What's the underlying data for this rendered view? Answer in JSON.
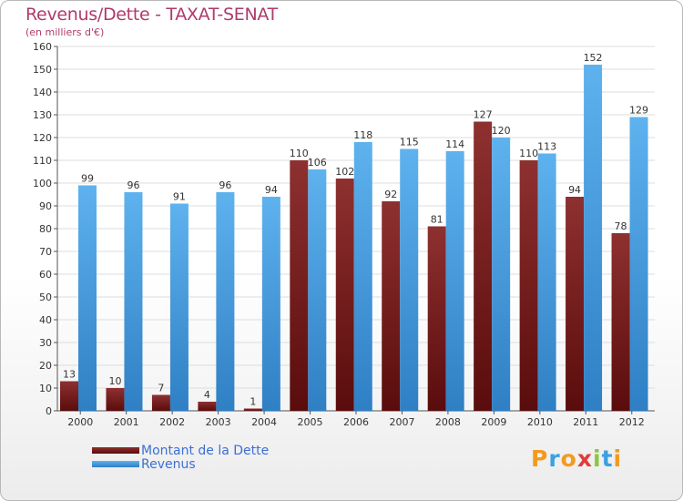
{
  "header": {
    "title": "Revenus/Dette - TAXAT-SENAT",
    "subtitle": "(en milliers d'€)"
  },
  "legend": {
    "items": [
      {
        "label": "Montant de la Dette",
        "color": "#7a1f1f"
      },
      {
        "label": "Revenus",
        "color": "#4a9fe3"
      }
    ]
  },
  "logo": {
    "letters": [
      "P",
      "r",
      "o",
      "x",
      "i",
      "t",
      "i"
    ]
  },
  "chart_data": {
    "type": "bar",
    "title": "Revenus/Dette - TAXAT-SENAT",
    "subtitle": "(en milliers d'€)",
    "xlabel": "",
    "ylabel": "",
    "categories": [
      "2000",
      "2001",
      "2002",
      "2003",
      "2004",
      "2005",
      "2006",
      "2007",
      "2008",
      "2009",
      "2010",
      "2011",
      "2012"
    ],
    "ylim": [
      0,
      160
    ],
    "yticks": [
      0,
      10,
      20,
      30,
      40,
      50,
      60,
      70,
      80,
      90,
      100,
      110,
      120,
      130,
      140,
      150,
      160
    ],
    "grid": true,
    "legend_position": "bottom-left",
    "series": [
      {
        "name": "Montant de la Dette",
        "color": "#7a1f1f",
        "values": [
          13,
          10,
          7,
          4,
          1,
          110,
          102,
          92,
          81,
          127,
          110,
          94,
          78
        ]
      },
      {
        "name": "Revenus",
        "color": "#4a9fe3",
        "values": [
          99,
          96,
          91,
          96,
          94,
          106,
          118,
          115,
          114,
          120,
          113,
          152,
          129
        ]
      }
    ]
  }
}
